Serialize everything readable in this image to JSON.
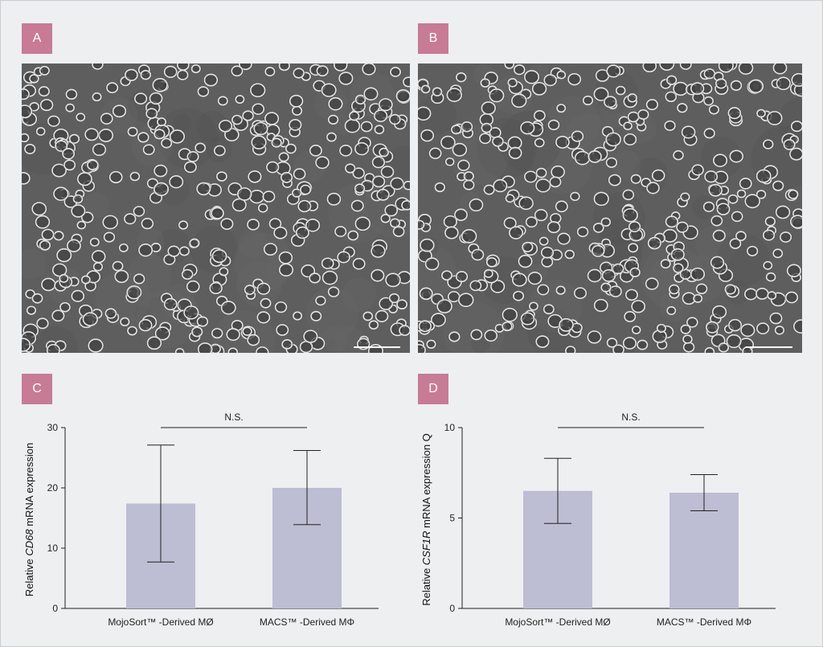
{
  "panels": {
    "a": {
      "label": "A"
    },
    "b": {
      "label": "B"
    },
    "c": {
      "label": "C"
    },
    "d": {
      "label": "D"
    }
  },
  "colors": {
    "panel_label_bg": "#c77b95",
    "bar_fill": "#bdbdd3",
    "micrograph_bg": "#5a5a5a",
    "page_bg": "#eeeff1"
  },
  "chart_data": [
    {
      "type": "bar",
      "panel": "C",
      "categories": [
        "MojoSort™ -Derived MØ",
        "MACS™ -Derived MΦ"
      ],
      "values": [
        17.4,
        20.0
      ],
      "error_low": [
        7.7,
        13.9
      ],
      "error_high": [
        27.1,
        26.2
      ],
      "ylabel_prefix": "Relative ",
      "ylabel_gene": "CD68",
      "ylabel_suffix": " mRNA expression",
      "yticks": [
        0,
        10,
        20,
        30
      ],
      "ylim": [
        0,
        30
      ],
      "annotation": "N.S.",
      "grid": false
    },
    {
      "type": "bar",
      "panel": "D",
      "categories": [
        "MojoSort™ -Derived MØ",
        "MACS™ -Derived MΦ"
      ],
      "values": [
        6.5,
        6.4
      ],
      "error_low": [
        4.7,
        5.4
      ],
      "error_high": [
        8.3,
        7.4
      ],
      "ylabel_prefix": "Relative ",
      "ylabel_gene": "CSF1R",
      "ylabel_suffix": " mRNA expression Q",
      "yticks": [
        0,
        5,
        10
      ],
      "ylim": [
        0,
        10
      ],
      "annotation": "N.S.",
      "grid": false
    }
  ]
}
